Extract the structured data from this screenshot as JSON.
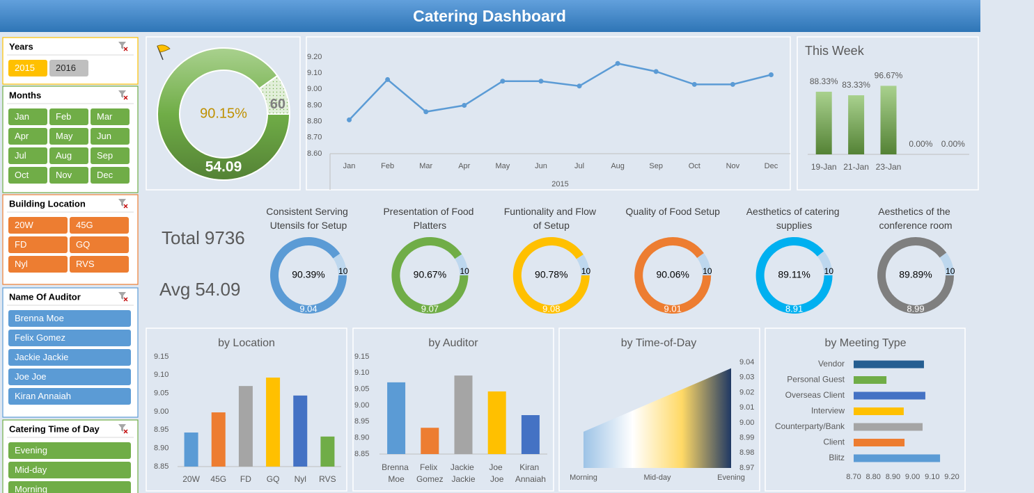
{
  "title": "Catering Dashboard",
  "slicers": [
    {
      "title": "Years",
      "color": "#ffc000",
      "items": [
        "2015",
        "2016"
      ],
      "item_colors": [
        "#ffc000",
        "#bfbfbf"
      ]
    },
    {
      "title": "Months",
      "color": "#70ad47",
      "items": [
        "Jan",
        "Feb",
        "Mar",
        "Apr",
        "May",
        "Jun",
        "Jul",
        "Aug",
        "Sep",
        "Oct",
        "Nov",
        "Dec"
      ]
    },
    {
      "title": "Building Location",
      "color": "#ed7d31",
      "items": [
        "20W",
        "45G",
        "FD",
        "GQ",
        "Nyl",
        "RVS"
      ]
    },
    {
      "title": "Name Of Auditor",
      "color": "#5b9bd5",
      "items": [
        "Brenna Moe",
        "Felix Gomez",
        "Jackie Jackie",
        "Joe Joe",
        "Kiran Annaiah"
      ]
    },
    {
      "title": "Catering Time of Day",
      "color": "#70ad47",
      "items": [
        "Evening",
        "Mid-day",
        "Morning"
      ]
    }
  ],
  "kpis": {
    "total_label": "Total",
    "total": 9736,
    "avg_label": "Avg",
    "avg": 54.09
  },
  "chart_data": [
    {
      "type": "gauge",
      "value": 54.09,
      "max": 60,
      "percent": 90.15,
      "percent_label": "90.15%",
      "color": "#70ad47"
    },
    {
      "type": "line",
      "categories": [
        "Jan",
        "Feb",
        "Mar",
        "Apr",
        "May",
        "Jun",
        "Jul",
        "Aug",
        "Sep",
        "Oct",
        "Nov",
        "Dec"
      ],
      "values": [
        8.81,
        9.06,
        8.86,
        8.9,
        9.05,
        9.05,
        9.02,
        9.16,
        9.11,
        9.03,
        9.03,
        9.09
      ],
      "xlabel": "2015",
      "color": "#5b9bd5",
      "ylim": [
        8.6,
        9.2
      ],
      "yticks": [
        {
          "value": 8.6,
          "label": "8.60"
        },
        {
          "value": 8.7,
          "label": "8.70"
        },
        {
          "value": 8.8,
          "label": "8.80"
        },
        {
          "value": 8.9,
          "label": "8.90"
        },
        {
          "value": 9.0,
          "label": "9.00"
        },
        {
          "value": 9.1,
          "label": "9.10"
        },
        {
          "value": 9.2,
          "label": "9.20"
        }
      ],
      "grid": false
    },
    {
      "type": "bar",
      "title": "This Week",
      "categories": [
        "19-Jan",
        "21-Jan",
        "23-Jan",
        null,
        null
      ],
      "values": [
        88.33,
        83.33,
        96.67,
        0,
        0
      ],
      "value_labels": [
        "88.33%",
        "83.33%",
        "96.67%",
        "0.00%",
        "0.00%"
      ],
      "color": "#548235",
      "ylim": [
        0,
        100
      ]
    },
    {
      "type": "gauge",
      "title": "Consistent Serving Utensils for Setup",
      "value": 9.04,
      "max": 10,
      "percent": 90.39,
      "percent_label": "90.39%",
      "color": "#5b9bd5"
    },
    {
      "type": "gauge",
      "title": "Presentation of Food Platters",
      "value": 9.07,
      "max": 10,
      "percent": 90.67,
      "percent_label": "90.67%",
      "color": "#70ad47"
    },
    {
      "type": "gauge",
      "title": "Funtionality and Flow of Setup",
      "value": 9.08,
      "max": 10,
      "percent": 90.78,
      "percent_label": "90.78%",
      "color": "#ffc000"
    },
    {
      "type": "gauge",
      "title": "Quality of Food Setup",
      "value": 9.01,
      "max": 10,
      "percent": 90.06,
      "percent_label": "90.06%",
      "color": "#ed7d31"
    },
    {
      "type": "gauge",
      "title": "Aesthetics of catering supplies",
      "value": 8.91,
      "max": 10,
      "percent": 89.11,
      "percent_label": "89.11%",
      "color": "#00b0f0"
    },
    {
      "type": "gauge",
      "title": "Aesthetics of the conference room",
      "value": 8.99,
      "max": 10,
      "percent": 89.89,
      "percent_label": "89.89%",
      "color": "#7f7f7f"
    },
    {
      "type": "bar",
      "title": "by Location",
      "categories": [
        "20W",
        "45G",
        "FD",
        "GQ",
        "Nyl",
        "RVS"
      ],
      "values": [
        8.943,
        8.998,
        9.07,
        9.093,
        9.044,
        8.932
      ],
      "colors": [
        "#5b9bd5",
        "#ed7d31",
        "#a5a5a5",
        "#ffc000",
        "#4472c4",
        "#70ad47"
      ],
      "ylim": [
        8.85,
        9.15
      ],
      "yticks": [
        8.85,
        {
          "value": 8.9,
          "label": "8.90"
        },
        8.95,
        {
          "value": 9.0,
          "label": "9.00"
        },
        9.05,
        {
          "value": 9.1,
          "label": "9.10"
        },
        9.15
      ]
    },
    {
      "type": "bar",
      "title": "by Auditor",
      "categories": [
        "Brenna Moe",
        "Felix Gomez",
        "Jackie Jackie",
        "Joe Joe",
        "Kiran Annaiah"
      ],
      "values": [
        9.071,
        8.931,
        9.092,
        9.043,
        8.97
      ],
      "colors": [
        "#5b9bd5",
        "#ed7d31",
        "#a5a5a5",
        "#ffc000",
        "#4472c4"
      ],
      "ylim": [
        8.85,
        9.15
      ],
      "yticks": [
        8.85,
        {
          "value": 8.9,
          "label": "8.90"
        },
        8.95,
        {
          "value": 9.0,
          "label": "9.00"
        },
        9.05,
        {
          "value": 9.1,
          "label": "9.10"
        },
        9.15
      ]
    },
    {
      "type": "area",
      "title": "by Time-of-Day",
      "categories": [
        "Morning",
        "Mid-day",
        "Evening"
      ],
      "values": [
        8.994,
        9.015,
        9.036
      ],
      "gradient": [
        "#9dc3e6",
        "#ffffff",
        "#ffd966",
        "#1f3864"
      ],
      "ylim": [
        8.97,
        9.04
      ],
      "yticks": [
        8.97,
        8.98,
        8.99,
        {
          "value": 9.0,
          "label": "9.00"
        },
        9.01,
        9.02,
        9.03,
        9.04
      ],
      "y_axis_side": "right"
    },
    {
      "type": "barh",
      "title": "by Meeting Type",
      "categories": [
        "Vendor",
        "Personal Guest",
        "Overseas Client",
        "Interview",
        "Counterparty/Bank",
        "Client",
        "Blitz"
      ],
      "values": [
        9.058,
        8.867,
        9.065,
        8.955,
        9.051,
        8.959,
        9.14
      ],
      "colors": [
        "#255e91",
        "#70ad47",
        "#4472c4",
        "#ffc000",
        "#a5a5a5",
        "#ed7d31",
        "#5b9bd5"
      ],
      "xlim": [
        8.7,
        9.2
      ],
      "xticks": [
        {
          "value": 8.7,
          "label": "8.70"
        },
        {
          "value": 8.8,
          "label": "8.80"
        },
        {
          "value": 8.9,
          "label": "8.90"
        },
        {
          "value": 9.0,
          "label": "9.00"
        },
        {
          "value": 9.1,
          "label": "9.10"
        },
        {
          "value": 9.2,
          "label": "9.20"
        }
      ]
    }
  ]
}
